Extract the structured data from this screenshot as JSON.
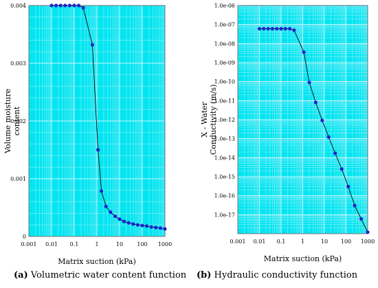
{
  "chart_data": [
    {
      "type": "line",
      "caption_tag": "(a)",
      "caption_text": "Volumetric water content function",
      "xlabel": "Matrix suction (kPa)",
      "ylabel_lines": [
        "Volume moisture",
        "content"
      ],
      "x_scale": "log",
      "xlim": [
        0.001,
        1000
      ],
      "ylim": [
        0,
        0.004
      ],
      "x_tick_labels": [
        "0.001",
        "0.01",
        "0.1",
        "1",
        "10",
        "100",
        "1000"
      ],
      "y_tick_labels": [
        "0",
        "0.001",
        "0.002",
        "0.003",
        "0.004"
      ],
      "y_tick_values": [
        0,
        0.001,
        0.002,
        0.003,
        0.004
      ],
      "grid": true,
      "x": [
        0.01,
        0.0158,
        0.0251,
        0.0398,
        0.0631,
        0.1,
        0.158,
        0.251,
        0.631,
        1.12,
        1.58,
        2.51,
        3.98,
        6.31,
        10,
        15.8,
        25.1,
        39.8,
        63.1,
        100,
        158,
        251,
        398,
        631,
        1000
      ],
      "y": [
        0.004,
        0.004,
        0.004,
        0.004,
        0.004,
        0.004,
        0.004,
        0.00396,
        0.00332,
        0.0015,
        0.000785,
        0.00052,
        0.00042,
        0.00035,
        0.0003,
        0.00026,
        0.000235,
        0.000215,
        0.0002,
        0.00019,
        0.00018,
        0.000165,
        0.000155,
        0.000145,
        0.00013
      ]
    },
    {
      "type": "line",
      "caption_tag": "(b)",
      "caption_text": "Hydraulic conductivity function",
      "xlabel": "Matrix suction (kPa)",
      "ylabel_lines": [
        "X - Water",
        "Conductivity (m/s)"
      ],
      "x_scale": "log",
      "y_scale": "log",
      "xlim": [
        0.001,
        1000
      ],
      "ylim": [
        1e-18,
        1e-06
      ],
      "x_tick_labels": [
        "0.001",
        "0.01",
        "0.1",
        "1",
        "10",
        "100",
        "1000"
      ],
      "y_tick_labels": [
        "1.0e-06",
        "1.0e-07",
        "1.0e-08",
        "1.0e-09",
        "1.0e-10",
        "1.0e-11",
        "1.0e-12",
        "1.0e-13",
        "1.0e-14",
        "1.0e-15",
        "1.0e-16",
        "1.0e-17"
      ],
      "y_tick_values": [
        1e-06,
        1e-07,
        1e-08,
        1e-09,
        1e-10,
        1e-11,
        1e-12,
        1e-13,
        1e-14,
        1e-15,
        1e-16,
        1e-17
      ],
      "grid": true,
      "x": [
        0.01,
        0.0158,
        0.0251,
        0.0398,
        0.0631,
        0.1,
        0.158,
        0.251,
        0.398,
        1.12,
        2.0,
        3.98,
        7.94,
        15.8,
        31.6,
        63.1,
        126,
        251,
        501,
        1000
      ],
      "y": [
        6e-08,
        6e-08,
        6e-08,
        6e-08,
        6e-08,
        6e-08,
        6e-08,
        6e-08,
        5e-08,
        3.5e-09,
        9e-11,
        8e-12,
        9e-13,
        1.2e-13,
        1.7e-14,
        2.5e-15,
        3e-16,
        3e-17,
        6e-18,
        1.2e-18
      ]
    }
  ],
  "colors": {
    "plot_bg": "#00e5f0",
    "grid_major": "#c8f6ff",
    "grid_minor": "#8eeef8",
    "line": "#000000",
    "marker": "#2222cc"
  }
}
